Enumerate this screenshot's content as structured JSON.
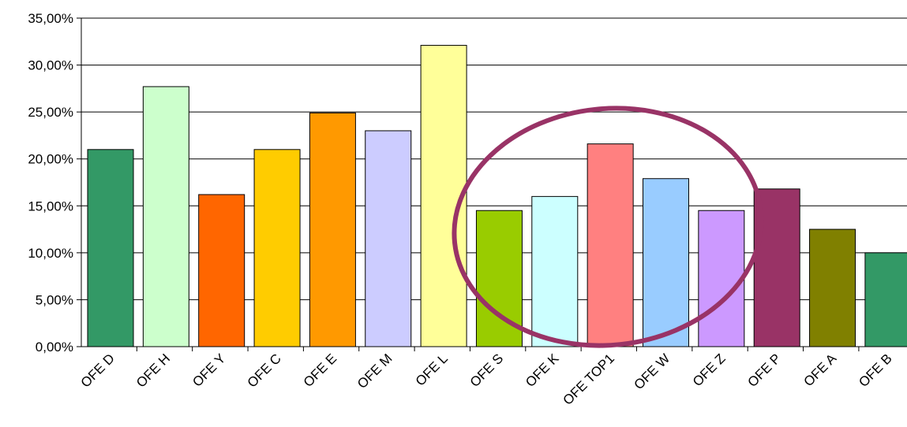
{
  "chart_data": {
    "type": "bar",
    "title": "",
    "xlabel": "",
    "ylabel": "",
    "ylim": [
      0,
      35
    ],
    "ytick_step": 5,
    "ytick_labels": [
      "0,00%",
      "5,00%",
      "10,00%",
      "15,00%",
      "20,00%",
      "25,00%",
      "30,00%",
      "35,00%"
    ],
    "grid": true,
    "legend": "none",
    "categories": [
      "OFE D",
      "OFE H",
      "OFE Y",
      "OFE C",
      "OFE E",
      "OFE M",
      "OFE L",
      "OFE S",
      "OFE K",
      "OFE TOP1",
      "OFE W",
      "OFE Z",
      "OFE P",
      "OFE A",
      "OFE B"
    ],
    "values": [
      21.0,
      27.7,
      16.2,
      21.0,
      24.9,
      23.0,
      32.1,
      14.5,
      16.0,
      21.6,
      17.9,
      14.5,
      16.8,
      12.5,
      10.0
    ],
    "colors": [
      "#339966",
      "#CCFFCC",
      "#FF6600",
      "#FFCC00",
      "#FF9900",
      "#CCCCFF",
      "#FFFF99",
      "#99CC00",
      "#CCFFFF",
      "#FF8080",
      "#99CCFF",
      "#CC99FF",
      "#993366",
      "#808000",
      "#339966"
    ],
    "annotation": {
      "shape": "ellipse",
      "color": "#993366",
      "highlighted_categories": [
        "OFE S",
        "OFE K",
        "OFE TOP1",
        "OFE W",
        "OFE Z"
      ]
    }
  }
}
